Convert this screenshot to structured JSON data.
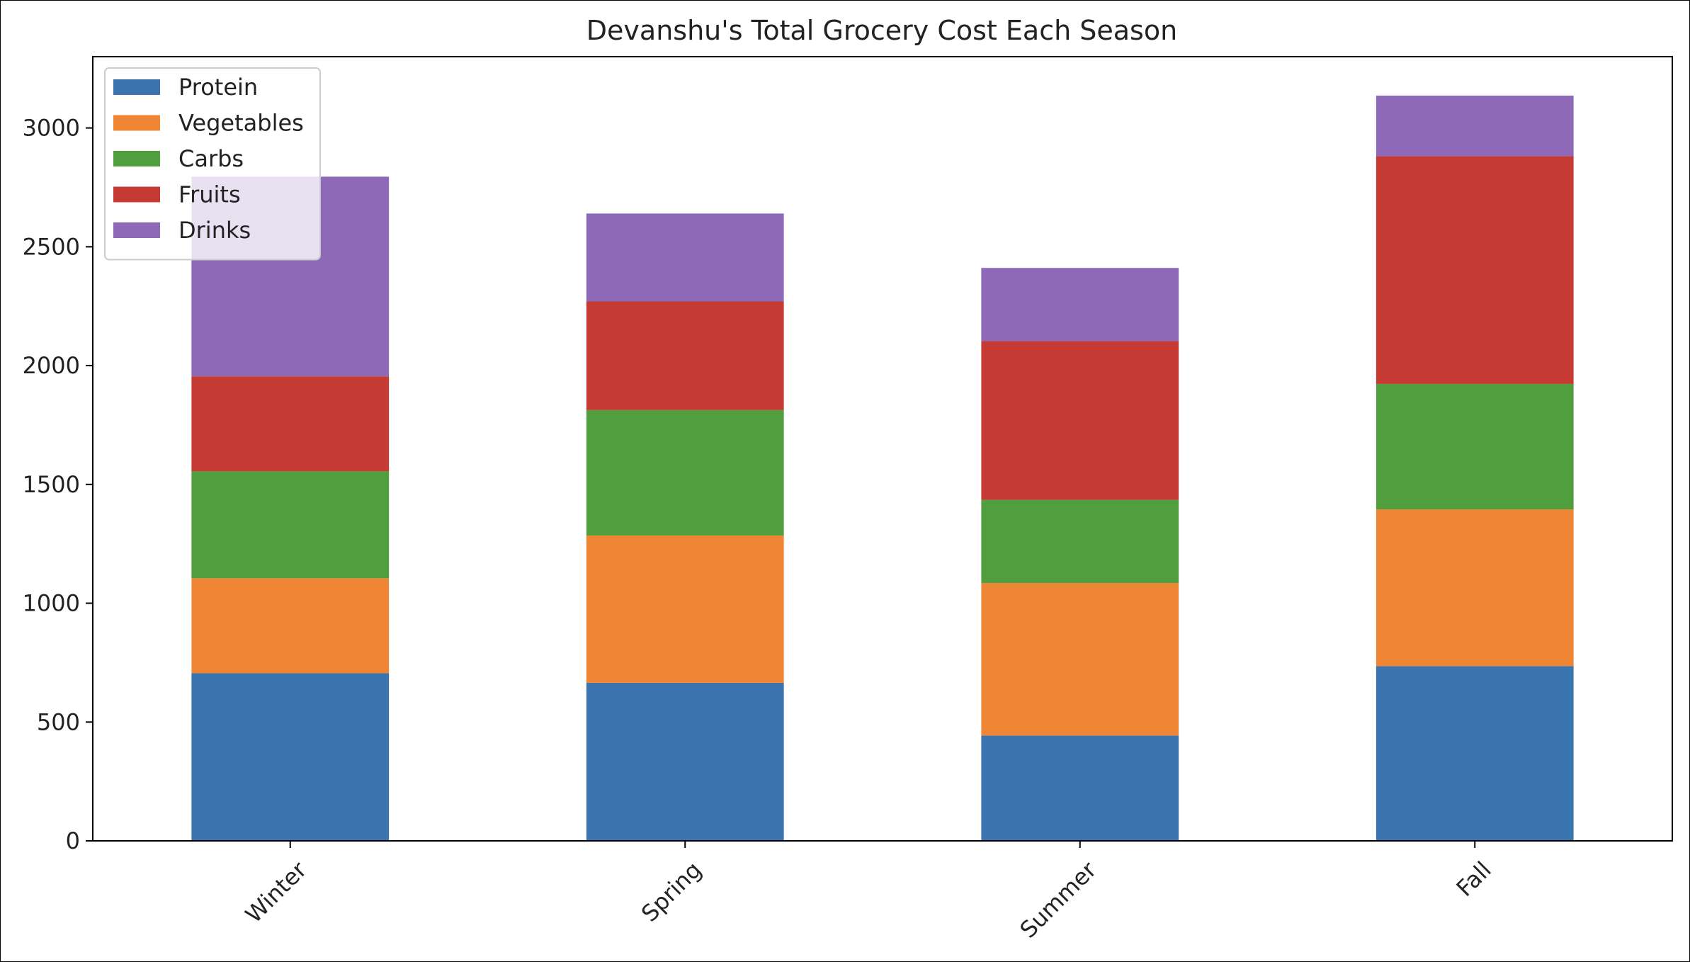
{
  "chart_data": {
    "type": "bar",
    "stacked": true,
    "title": "Devanshu's Total Grocery Cost Each Season",
    "xlabel": "",
    "ylabel": "",
    "categories": [
      "Winter",
      "Spring",
      "Summer",
      "Fall"
    ],
    "series": [
      {
        "name": "Protein",
        "color": "#3a75af",
        "values": [
          705,
          665,
          443,
          735
        ]
      },
      {
        "name": "Vegetables",
        "color": "#ef8636",
        "values": [
          400,
          620,
          642,
          660
        ]
      },
      {
        "name": "Carbs",
        "color": "#519e3e",
        "values": [
          450,
          528,
          350,
          528
        ]
      },
      {
        "name": "Fruits",
        "color": "#c53a32",
        "values": [
          400,
          457,
          668,
          958
        ]
      },
      {
        "name": "Drinks",
        "color": "#8d69b8",
        "values": [
          840,
          370,
          308,
          255
        ]
      }
    ],
    "ylim": [
      0,
      3300
    ],
    "yticks": [
      0,
      500,
      1000,
      1500,
      2000,
      2500,
      3000
    ],
    "ytick_labels": [
      "0",
      "500",
      "1000",
      "1500",
      "2000",
      "2500",
      "3000"
    ],
    "legend_position": "upper-left",
    "grid": false
  }
}
